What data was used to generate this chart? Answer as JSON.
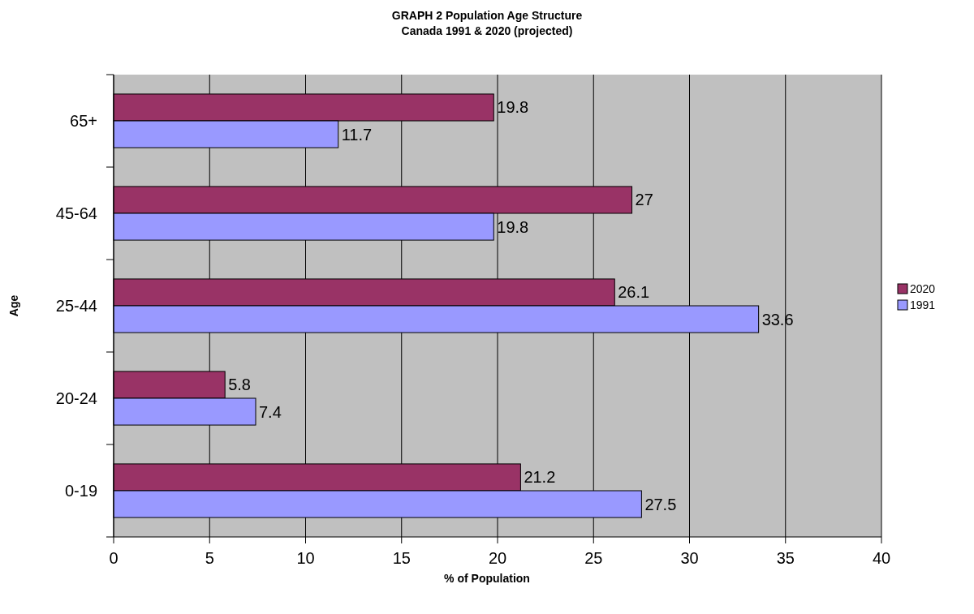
{
  "chart_data": {
    "type": "bar",
    "orientation": "horizontal",
    "title": "GRAPH 2  Population Age Structure",
    "subtitle": "Canada 1991 & 2020 (projected)",
    "xlabel": "% of Population",
    "ylabel": "Age",
    "categories": [
      "65+",
      "45-64",
      "25-44",
      "20-24",
      "0-19"
    ],
    "series": [
      {
        "name": "2020",
        "color": "#993366",
        "values": [
          19.8,
          27,
          26.1,
          5.8,
          21.2
        ]
      },
      {
        "name": "1991",
        "color": "#9999ff",
        "values": [
          11.7,
          19.8,
          33.6,
          7.4,
          27.5
        ]
      }
    ],
    "xlim": [
      0,
      40
    ],
    "xticks": [
      0,
      5,
      10,
      15,
      20,
      25,
      30,
      35,
      40
    ],
    "grid": "x",
    "legend": "right",
    "data_labels": true
  }
}
